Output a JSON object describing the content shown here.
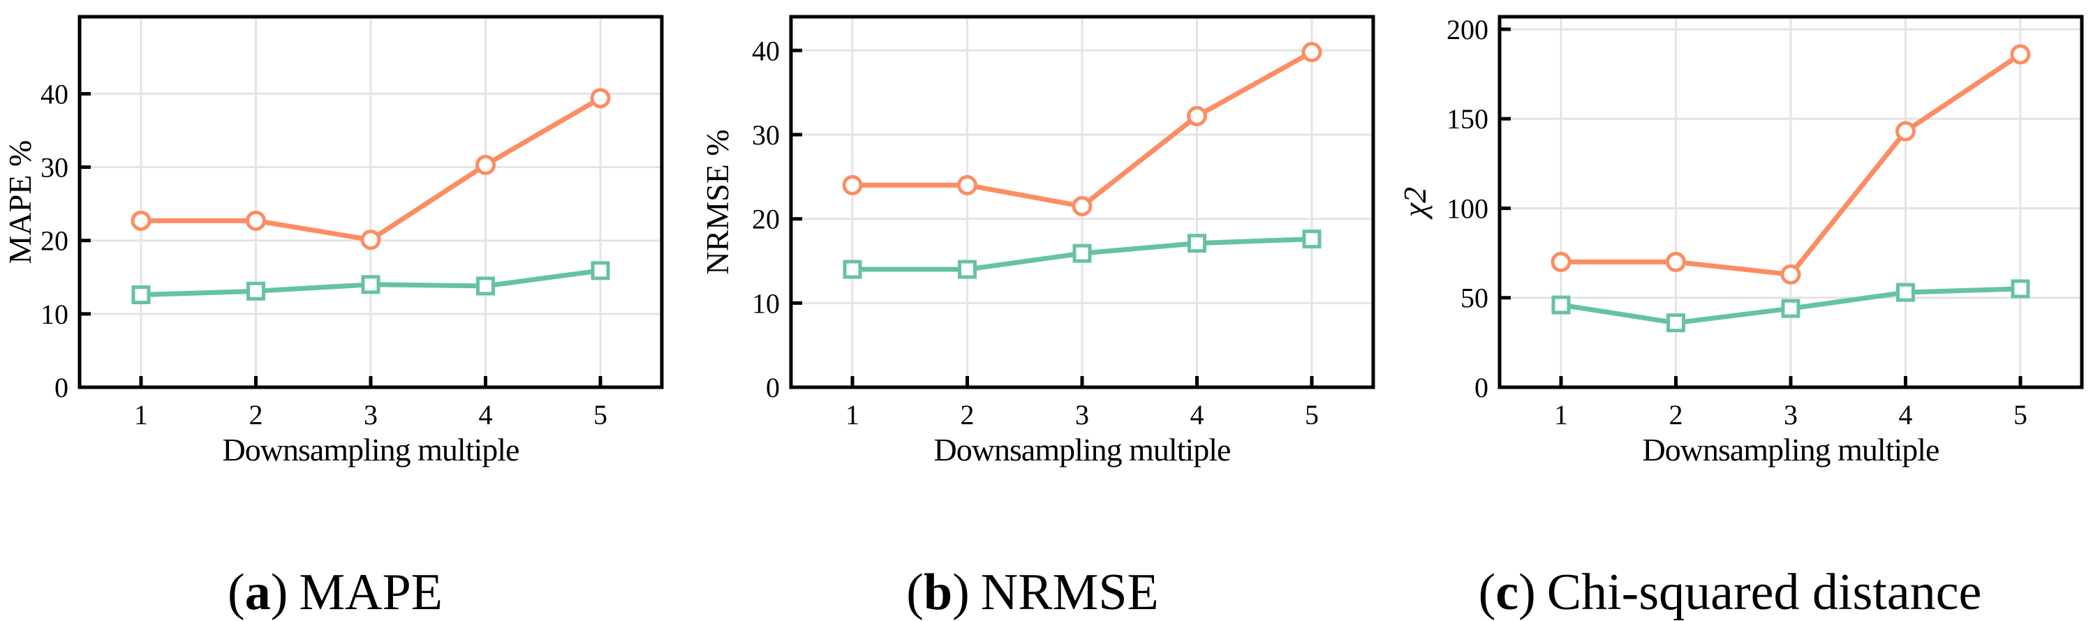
{
  "figure": {
    "background": "#ffffff",
    "xlabel_shared": "Downsampling multiple"
  },
  "colors": {
    "orange_series": "#FC8D62",
    "green_series": "#66C2A5",
    "gridline": "#E4E4E4",
    "axis": "#000000",
    "marker_fill": "#ffffff",
    "text": "#000000"
  },
  "chart_data": [
    {
      "type": "line",
      "title": "(a) MAPE",
      "caption": {
        "open": "(",
        "letter": "a",
        "close": ")",
        "label": "MAPE"
      },
      "xlabel": "Downsampling multiple",
      "ylabel": "MAPE %",
      "ylabel_italic": false,
      "x": [
        1,
        2,
        3,
        4,
        5
      ],
      "xticks": [
        1,
        2,
        3,
        4,
        5
      ],
      "yticks": [
        0,
        10,
        20,
        30,
        40
      ],
      "ylim": [
        0,
        50.5
      ],
      "xlim": [
        0.47,
        5.53
      ],
      "grid": true,
      "legend": "none",
      "series": [
        {
          "name": "orange-circle",
          "marker": "circle",
          "color": "#FC8D62",
          "values": [
            22.7,
            22.7,
            20.1,
            30.3,
            39.4
          ]
        },
        {
          "name": "green-square",
          "marker": "square",
          "color": "#66C2A5",
          "values": [
            12.6,
            13.1,
            14.0,
            13.8,
            15.9
          ]
        }
      ]
    },
    {
      "type": "line",
      "title": "(b) NRMSE",
      "caption": {
        "open": "(",
        "letter": "b",
        "close": ")",
        "label": "NRMSE"
      },
      "xlabel": "Downsampling multiple",
      "ylabel": "NRMSE %",
      "ylabel_italic": false,
      "x": [
        1,
        2,
        3,
        4,
        5
      ],
      "xticks": [
        1,
        2,
        3,
        4,
        5
      ],
      "yticks": [
        0,
        10,
        20,
        30,
        40
      ],
      "ylim": [
        0,
        44
      ],
      "xlim": [
        0.47,
        5.53
      ],
      "grid": true,
      "legend": "none",
      "series": [
        {
          "name": "orange-circle",
          "marker": "circle",
          "color": "#FC8D62",
          "values": [
            24.0,
            24.0,
            21.5,
            32.2,
            39.8
          ]
        },
        {
          "name": "green-square",
          "marker": "square",
          "color": "#66C2A5",
          "values": [
            14.0,
            14.0,
            15.9,
            17.1,
            17.6
          ]
        }
      ]
    },
    {
      "type": "line",
      "title": "(c) Chi-squared distance",
      "caption": {
        "open": "(",
        "letter": "c",
        "close": ")",
        "label": "Chi-squared distance"
      },
      "xlabel": "Downsampling multiple",
      "ylabel": "χ2",
      "ylabel_italic": true,
      "x": [
        1,
        2,
        3,
        4,
        5
      ],
      "xticks": [
        1,
        2,
        3,
        4,
        5
      ],
      "yticks": [
        0,
        50,
        100,
        150,
        200
      ],
      "ylim": [
        0,
        207
      ],
      "xlim": [
        0.47,
        5.53
      ],
      "grid": true,
      "legend": "none",
      "series": [
        {
          "name": "orange-circle",
          "marker": "circle",
          "color": "#FC8D62",
          "values": [
            70,
            70,
            63,
            143,
            186
          ]
        },
        {
          "name": "green-square",
          "marker": "square",
          "color": "#66C2A5",
          "values": [
            46,
            36,
            44,
            53,
            55
          ]
        }
      ]
    }
  ]
}
